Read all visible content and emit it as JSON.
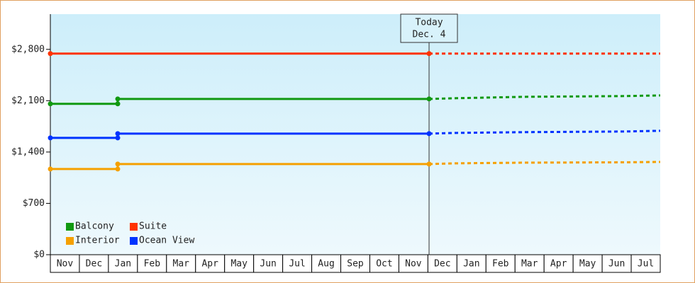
{
  "chart_data": {
    "type": "line",
    "categories": [
      "Nov",
      "Dec",
      "Jan",
      "Feb",
      "Mar",
      "Apr",
      "May",
      "Jun",
      "Jul",
      "Aug",
      "Sep",
      "Oct",
      "Nov",
      "Dec",
      "Jan",
      "Feb",
      "Mar",
      "Apr",
      "May",
      "Jun",
      "Jul"
    ],
    "xlim": [
      0,
      21
    ],
    "ylim": [
      0,
      3280
    ],
    "yticks": [
      {
        "value": 0,
        "label": "$0"
      },
      {
        "value": 700,
        "label": "$700"
      },
      {
        "value": 1400,
        "label": "$1,400"
      },
      {
        "value": 2100,
        "label": "$2,100"
      },
      {
        "value": 2800,
        "label": "$2,800"
      }
    ],
    "today": {
      "x": 13.04,
      "label": [
        "Today",
        "Dec. 4"
      ]
    },
    "series": [
      {
        "name": "Balcony",
        "color": "#119911",
        "x": [
          0,
          2.32,
          2.32,
          13.04
        ],
        "values": [
          2057,
          2057,
          2124,
          2124
        ],
        "projected_x": [
          13.04,
          14.0,
          16.3,
          19.8,
          21
        ],
        "projected_values": [
          2124,
          2134,
          2153,
          2163,
          2172
        ]
      },
      {
        "name": "Suite",
        "color": "#ff3300",
        "x": [
          0,
          13.04
        ],
        "values": [
          2742,
          2742
        ],
        "projected_x": [
          13.04,
          21
        ],
        "projected_values": [
          2742,
          2742
        ]
      },
      {
        "name": "Interior",
        "color": "#f5a000",
        "x": [
          0,
          2.32,
          2.32,
          13.04
        ],
        "values": [
          1168,
          1168,
          1236,
          1236
        ],
        "projected_x": [
          13.04,
          14.0,
          16.3,
          19.8,
          21
        ],
        "projected_values": [
          1236,
          1246,
          1255,
          1260,
          1265
        ]
      },
      {
        "name": "Ocean View",
        "color": "#0033ff",
        "x": [
          0,
          2.32,
          2.32,
          13.04
        ],
        "values": [
          1593,
          1593,
          1651,
          1651
        ],
        "projected_x": [
          13.04,
          14.0,
          16.3,
          19.8,
          21
        ],
        "projected_values": [
          1651,
          1661,
          1671,
          1680,
          1690
        ]
      }
    ]
  }
}
